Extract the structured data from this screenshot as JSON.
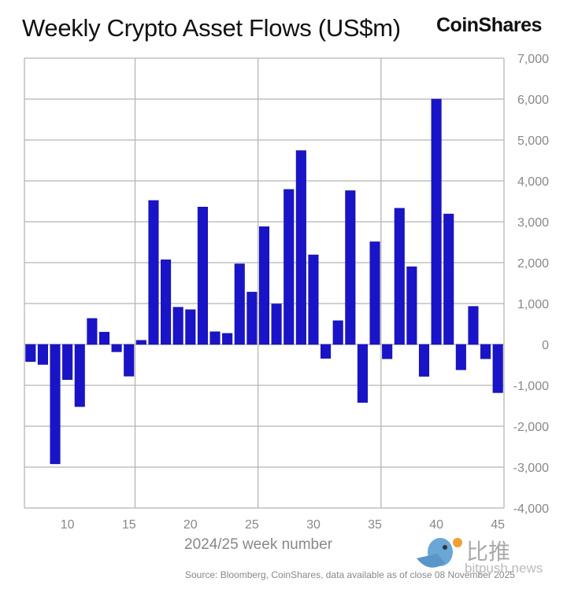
{
  "title": "Weekly Crypto Asset Flows (US$m)",
  "brand": "CoinShares",
  "source": "Source: Bloomberg, CoinShares, data available as of close 08 November 2025",
  "watermark": {
    "cn": "比推",
    "en": "bitpush.news"
  },
  "colors": {
    "bar": "#1a14c8",
    "grid": "#b5b5b5",
    "tick_text": "#888888"
  },
  "chart_data": {
    "type": "bar",
    "title": "Weekly Crypto Asset Flows (US$m)",
    "xlabel": "2024/25 week number",
    "ylabel": "",
    "x": [
      7,
      8,
      9,
      10,
      11,
      12,
      13,
      14,
      15,
      16,
      17,
      18,
      19,
      20,
      21,
      22,
      23,
      24,
      25,
      26,
      27,
      28,
      29,
      30,
      31,
      32,
      33,
      34,
      35,
      36,
      37,
      38,
      39,
      40,
      41,
      42,
      43,
      44,
      45
    ],
    "values": [
      -420,
      -490,
      -2920,
      -860,
      -1520,
      635,
      300,
      -180,
      -775,
      100,
      3520,
      2070,
      910,
      850,
      3360,
      310,
      270,
      1970,
      1280,
      2880,
      990,
      3790,
      4740,
      2190,
      -340,
      580,
      3760,
      -1420,
      2510,
      -350,
      3330,
      1900,
      -780,
      6000,
      3190,
      -620,
      930,
      -350,
      -1180
    ],
    "xlim": [
      6.5,
      45.5
    ],
    "ylim": [
      -4000,
      7000
    ],
    "x_ticks": [
      10,
      15,
      20,
      25,
      30,
      35,
      40,
      45
    ],
    "x_tick_labels": [
      "10",
      "15",
      "20",
      "25",
      "30",
      "35",
      "40",
      "45"
    ],
    "y_ticks": [
      7000,
      6000,
      5000,
      4000,
      3000,
      2000,
      1000,
      0,
      -1000,
      -2000,
      -3000,
      -4000
    ],
    "y_tick_labels": [
      "7,000",
      "6,000",
      "5,000",
      "4,000",
      "3,000",
      "2,000",
      "1,000",
      "0",
      "-1,000",
      "-2,000",
      "-3,000",
      "-4,000"
    ],
    "y_axis_side": "right",
    "grid": true,
    "vertical_grid_at": [
      15.5,
      25.5,
      35.5
    ],
    "legend": "none"
  }
}
